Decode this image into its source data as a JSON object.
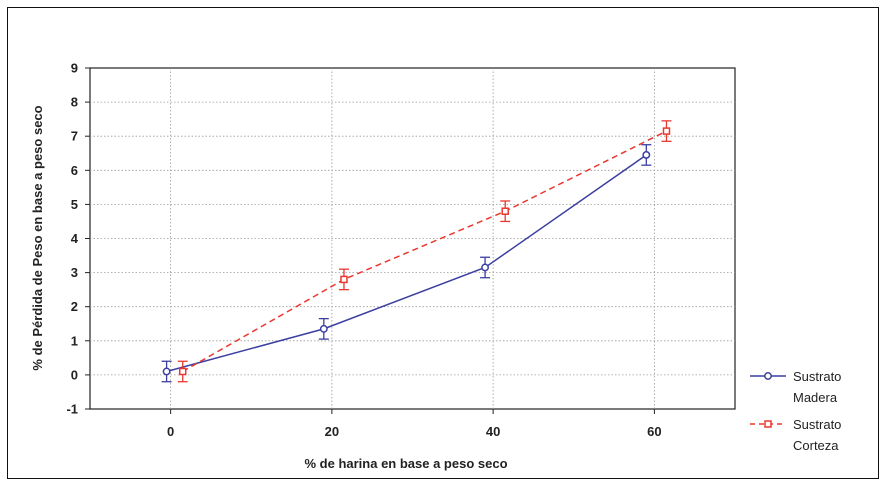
{
  "chart_data": {
    "type": "line",
    "xlabel": "% de harina en base a peso seco",
    "ylabel": "% de Pérdida de Peso en base a peso seco",
    "xlim": [
      -10,
      70
    ],
    "ylim": [
      -1,
      9
    ],
    "x_ticks": [
      "0",
      "20",
      "40",
      "60"
    ],
    "y_ticks": [
      "-1",
      "0",
      "1",
      "2",
      "3",
      "4",
      "5",
      "6",
      "7",
      "8",
      "9"
    ],
    "grid": true,
    "legend_position": "right",
    "series": [
      {
        "name_line1": "Sustrato",
        "name_line2": "Madera",
        "color": "#3b3fa0",
        "linestyle": "solid",
        "marker": "circle",
        "x": [
          -0.5,
          19,
          39,
          59
        ],
        "y": [
          0.1,
          1.35,
          3.15,
          6.45
        ],
        "err": [
          0.3,
          0.3,
          0.3,
          0.3
        ]
      },
      {
        "name_line1": "Sustrato",
        "name_line2": "Corteza",
        "color": "#e8382f",
        "linestyle": "dashed",
        "marker": "square",
        "x": [
          1.5,
          21.5,
          41.5,
          61.5
        ],
        "y": [
          0.1,
          2.8,
          4.8,
          7.15
        ],
        "err": [
          0.3,
          0.3,
          0.3,
          0.3
        ]
      }
    ]
  }
}
